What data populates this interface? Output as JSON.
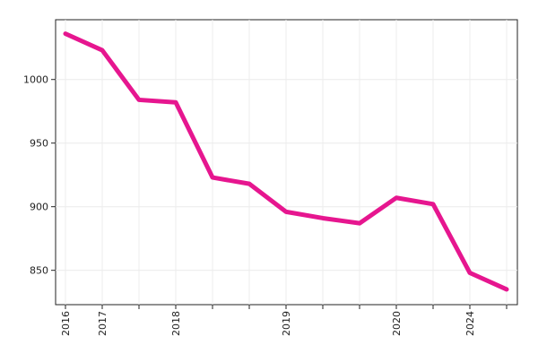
{
  "chart_data": {
    "type": "line",
    "categories": [
      "2016",
      "2017",
      null,
      "2018",
      null,
      null,
      "2019",
      null,
      null,
      "2020",
      null,
      "2024",
      null
    ],
    "series": [
      {
        "color": "#e6168f",
        "values": [
          1036,
          1023,
          984,
          982,
          923,
          918,
          896,
          891,
          887,
          907,
          902,
          848,
          835
        ]
      }
    ],
    "ylim": [
      823,
      1047
    ],
    "yticks": [
      850,
      900,
      950,
      1000
    ],
    "grid": true
  }
}
